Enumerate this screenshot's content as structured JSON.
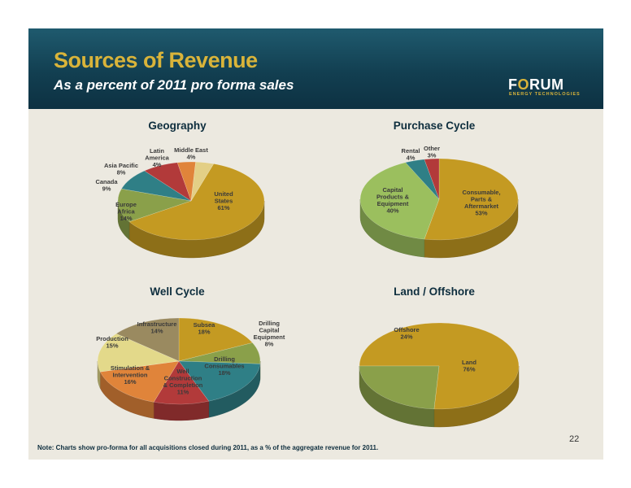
{
  "header": {
    "title": "Sources of Revenue",
    "subtitle": "As a percent of 2011 pro forma sales"
  },
  "logo": {
    "wordmark": "FORUM",
    "tagline": "ENERGY TECHNOLOGIES"
  },
  "page_number": "22",
  "footnote": "Note: Charts show pro-forma for all acquisitions closed during 2011, as a % of the aggregate revenue for 2011.",
  "colors": {
    "header_dark": "#0d3142",
    "title_gold": "#d9b43a",
    "slide_background": "#ece9e0"
  },
  "chart_data": [
    {
      "type": "pie",
      "title": "Geography",
      "slices": [
        {
          "label": [
            "United",
            "States",
            "61%"
          ],
          "value": 61,
          "color": "#c49a22"
        },
        {
          "label": [
            "Europe",
            "Africa",
            "14%"
          ],
          "value": 14,
          "color": "#8aa04a"
        },
        {
          "label": [
            "Canada",
            "9%"
          ],
          "value": 9,
          "color": "#2f7f86"
        },
        {
          "label": [
            "Asia Pacific",
            "8%"
          ],
          "value": 8,
          "color": "#b23a3a"
        },
        {
          "label": [
            "Latin",
            "America",
            "4%"
          ],
          "value": 4,
          "color": "#e0843a"
        },
        {
          "label": [
            "Middle East",
            "4%"
          ],
          "value": 4,
          "color": "#e3cf86"
        }
      ]
    },
    {
      "type": "pie",
      "title": "Purchase Cycle",
      "slices": [
        {
          "label": [
            "Consumable,",
            "Parts &",
            "Aftermarket",
            "53%"
          ],
          "value": 53,
          "color": "#c49a22"
        },
        {
          "label": [
            "Capital",
            "Products &",
            "Equipment",
            "40%"
          ],
          "value": 40,
          "color": "#9bbf5e"
        },
        {
          "label": [
            "Rental",
            "4%"
          ],
          "value": 4,
          "color": "#2f7f86"
        },
        {
          "label": [
            "Other",
            "3%"
          ],
          "value": 3,
          "color": "#b23a3a"
        }
      ]
    },
    {
      "type": "pie",
      "title": "Well Cycle",
      "slices": [
        {
          "label": [
            "Subsea",
            "18%"
          ],
          "value": 18,
          "color": "#c49a22"
        },
        {
          "label": [
            "Drilling",
            "Capital",
            "Equipment",
            "8%"
          ],
          "value": 8,
          "color": "#8aa04a"
        },
        {
          "label": [
            "Drilling",
            "Consumables",
            "18%"
          ],
          "value": 18,
          "color": "#2f7f86"
        },
        {
          "label": [
            "Well",
            "Construction",
            "& Completion",
            "11%"
          ],
          "value": 11,
          "color": "#b23a3a"
        },
        {
          "label": [
            "Stimulation &",
            "Intervention",
            "16%"
          ],
          "value": 16,
          "color": "#e0843a"
        },
        {
          "label": [
            "Production",
            "15%"
          ],
          "value": 15,
          "color": "#e3d98a"
        },
        {
          "label": [
            "Infrastructure",
            "14%"
          ],
          "value": 14,
          "color": "#9a8a60"
        }
      ]
    },
    {
      "type": "pie",
      "title": "Land / Offshore",
      "slices": [
        {
          "label": [
            "Land",
            "76%"
          ],
          "value": 76,
          "color": "#c49a22"
        },
        {
          "label": [
            "Offshore",
            "24%"
          ],
          "value": 24,
          "color": "#8aa04a"
        }
      ]
    }
  ]
}
